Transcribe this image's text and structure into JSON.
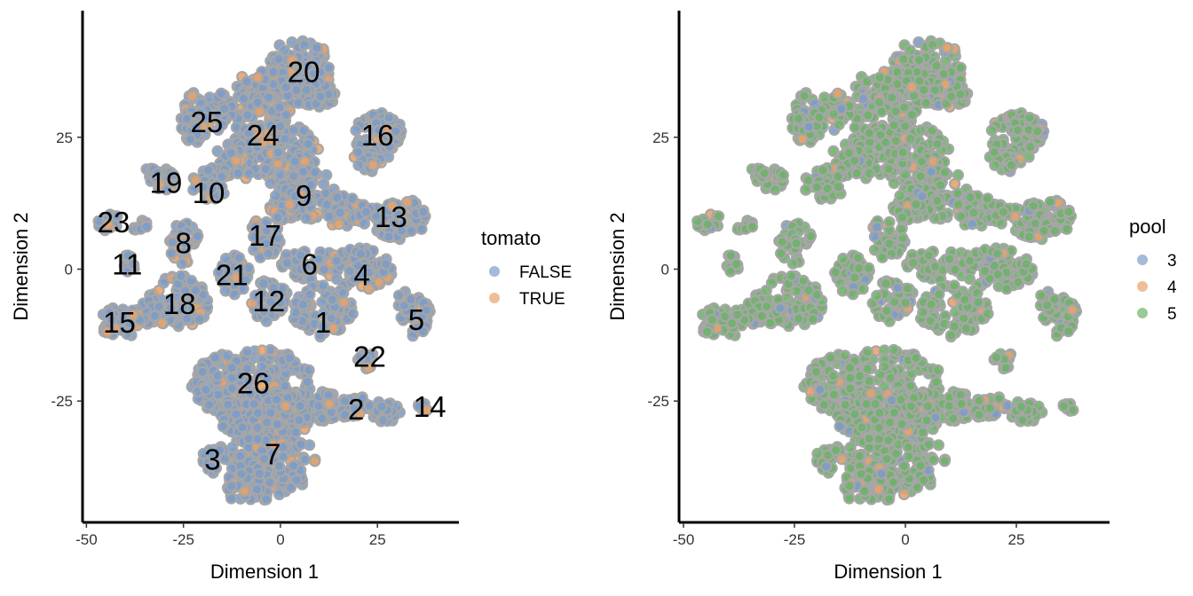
{
  "chart_data": [
    {
      "type": "scatter",
      "title": "",
      "xlabel": "Dimension 1",
      "ylabel": "Dimension 2",
      "xlim": [
        -51,
        46
      ],
      "ylim": [
        -48,
        49
      ],
      "x_ticks": [
        -50,
        -25,
        0,
        25
      ],
      "x_tick_labels": [
        "-50",
        "-25",
        "0",
        "25"
      ],
      "y_ticks": [
        -25,
        0,
        25
      ],
      "y_tick_labels": [
        "-25",
        "0",
        "25"
      ],
      "grid": false,
      "legend": {
        "title": "tomato",
        "placement": "right",
        "entries": [
          {
            "label": "FALSE",
            "color": "#7C9CC9"
          },
          {
            "label": "TRUE",
            "color": "#E8A36B"
          }
        ]
      },
      "clusters": [
        {
          "label": "1",
          "x": 11,
          "y": -10
        },
        {
          "label": "2",
          "x": 19.5,
          "y": -26.5
        },
        {
          "label": "3",
          "x": -17.5,
          "y": -36
        },
        {
          "label": "4",
          "x": 21,
          "y": -1
        },
        {
          "label": "5",
          "x": 35,
          "y": -9.5
        },
        {
          "label": "6",
          "x": 7.5,
          "y": 1
        },
        {
          "label": "7",
          "x": -2,
          "y": -35
        },
        {
          "label": "8",
          "x": -25,
          "y": 5
        },
        {
          "label": "9",
          "x": 6,
          "y": 14
        },
        {
          "label": "10",
          "x": -18.5,
          "y": 14.5
        },
        {
          "label": "11",
          "x": -39.5,
          "y": 1
        },
        {
          "label": "12",
          "x": -3,
          "y": -6
        },
        {
          "label": "13",
          "x": 28.5,
          "y": 10
        },
        {
          "label": "14",
          "x": 38.5,
          "y": -26
        },
        {
          "label": "15",
          "x": -41.5,
          "y": -10
        },
        {
          "label": "16",
          "x": 25,
          "y": 25.5
        },
        {
          "label": "17",
          "x": -4,
          "y": 6.5
        },
        {
          "label": "18",
          "x": -26,
          "y": -6.5
        },
        {
          "label": "19",
          "x": -29.5,
          "y": 16.5
        },
        {
          "label": "20",
          "x": 6,
          "y": 37.5
        },
        {
          "label": "21",
          "x": -12.5,
          "y": -1
        },
        {
          "label": "22",
          "x": 23,
          "y": -16.5
        },
        {
          "label": "23",
          "x": -43,
          "y": 9
        },
        {
          "label": "24",
          "x": -4.5,
          "y": 25.5
        },
        {
          "label": "25",
          "x": -19,
          "y": 28
        },
        {
          "label": "26",
          "x": -7,
          "y": -21.5
        }
      ]
    },
    {
      "type": "scatter",
      "title": "",
      "xlabel": "Dimension 1",
      "ylabel": "Dimension 2",
      "xlim": [
        -51,
        46
      ],
      "ylim": [
        -48,
        49
      ],
      "x_ticks": [
        -50,
        -25,
        0,
        25
      ],
      "x_tick_labels": [
        "-50",
        "-25",
        "0",
        "25"
      ],
      "y_ticks": [
        -25,
        0,
        25
      ],
      "y_tick_labels": [
        "-25",
        "0",
        "25"
      ],
      "grid": false,
      "legend": {
        "title": "pool",
        "placement": "right",
        "entries": [
          {
            "label": "3",
            "color": "#7C9CC9"
          },
          {
            "label": "4",
            "color": "#E8A36B"
          },
          {
            "label": "5",
            "color": "#6FB36A"
          }
        ]
      }
    }
  ]
}
